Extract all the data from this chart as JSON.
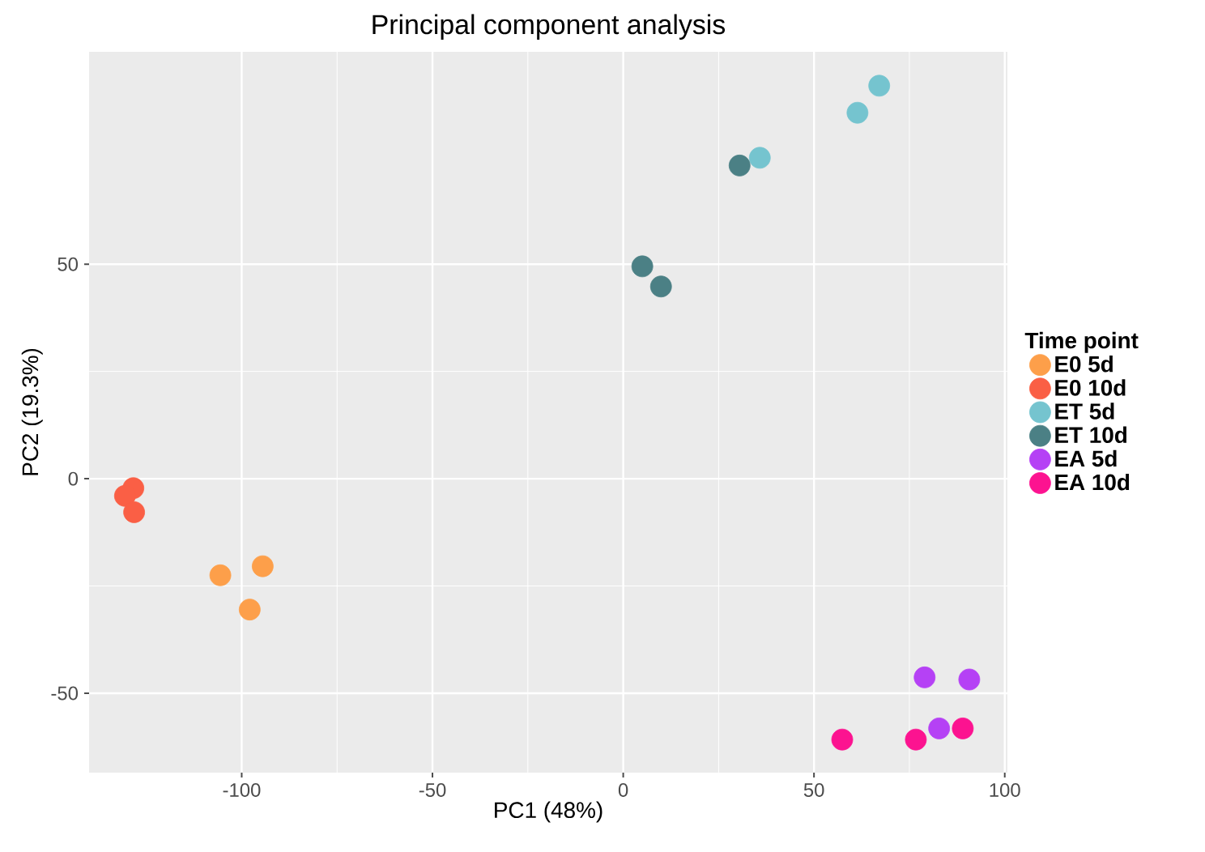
{
  "chart_data": {
    "type": "scatter",
    "title": "Principal component analysis",
    "xlabel": "PC1 (48%)",
    "ylabel": "PC2 (19.3%)",
    "legend_title": "Time point",
    "xlim": [
      -140,
      100.7
    ],
    "ylim": [
      -68.5,
      99.5
    ],
    "xticks": [
      -100,
      -50,
      0,
      50,
      100
    ],
    "yticks": [
      -50,
      0,
      50
    ],
    "grid": true,
    "legend": "right",
    "series": [
      {
        "name": "E0 5d",
        "color": "#fd9f4a",
        "x": [
          -105.6,
          -94.5,
          -97.9
        ],
        "values": [
          -22.5,
          -20.4,
          -30.5
        ]
      },
      {
        "name": "E0 10d",
        "color": "#fa5f45",
        "x": [
          -128.4,
          -130.6,
          -128.2
        ],
        "values": [
          -2.2,
          -4,
          -7.8
        ]
      },
      {
        "name": "ET 5d",
        "color": "#75c4cf",
        "x": [
          67.1,
          61.4,
          35.8
        ],
        "values": [
          91.6,
          85.3,
          74.8
        ]
      },
      {
        "name": "ET 10d",
        "color": "#4b8085",
        "x": [
          30.5,
          5.0,
          9.9
        ],
        "values": [
          73.0,
          49.5,
          44.8
        ]
      },
      {
        "name": "EA 5d",
        "color": "#b541f5",
        "x": [
          79.0,
          90.7,
          82.8
        ],
        "values": [
          -46.3,
          -46.8,
          -58.2
        ]
      },
      {
        "name": "EA 10d",
        "color": "#fc1390",
        "x": [
          57.4,
          76.7,
          89.0
        ],
        "values": [
          -60.8,
          -60.8,
          -58.2
        ]
      }
    ]
  }
}
